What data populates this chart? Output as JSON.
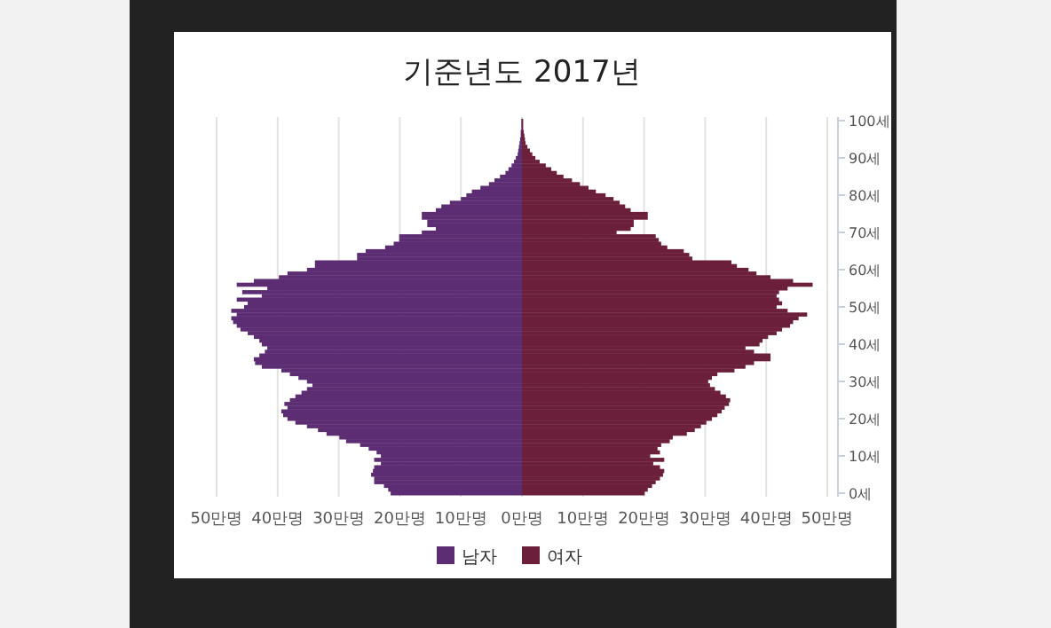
{
  "chart_data": {
    "type": "bar",
    "orientation": "horizontal",
    "title": "기준년도 2017년",
    "categories": [
      "100세",
      null,
      null,
      null,
      null,
      null,
      null,
      null,
      null,
      null,
      "90세",
      null,
      null,
      null,
      null,
      null,
      null,
      null,
      null,
      null,
      "80세",
      null,
      null,
      null,
      null,
      null,
      null,
      null,
      null,
      null,
      "70세",
      null,
      null,
      null,
      null,
      null,
      null,
      null,
      null,
      null,
      "60세",
      null,
      null,
      null,
      null,
      null,
      null,
      null,
      null,
      null,
      "50세",
      null,
      null,
      null,
      null,
      null,
      null,
      null,
      null,
      null,
      "40세",
      null,
      null,
      null,
      null,
      null,
      null,
      null,
      null,
      null,
      "30세",
      null,
      null,
      null,
      null,
      null,
      null,
      null,
      null,
      null,
      "20세",
      null,
      null,
      null,
      null,
      null,
      null,
      null,
      null,
      null,
      "10세",
      null,
      null,
      null,
      null,
      null,
      null,
      null,
      null,
      null,
      "0세"
    ],
    "series": [
      {
        "name": "남자",
        "color": "#5c2d73",
        "values": [
          -0.1,
          -0.1,
          -0.1,
          -0.2,
          -0.2,
          -0.3,
          -0.4,
          -0.5,
          -0.6,
          -0.7,
          -1,
          -1.3,
          -1.7,
          -2.2,
          -2.7,
          -3.6,
          -4.5,
          -5.4,
          -6.8,
          -8.2,
          -9.1,
          -10,
          -11.8,
          -13.2,
          -14.1,
          -16.4,
          -16.4,
          -15.5,
          -15.5,
          -14.1,
          -16.4,
          -20.1,
          -20.1,
          -21,
          -22.4,
          -25.6,
          -27,
          -27,
          -33.9,
          -33.9,
          -35.2,
          -38.4,
          -39.8,
          -43.9,
          -46.7,
          -41.7,
          -45.8,
          -42.6,
          -46.7,
          -44.9,
          -45.5,
          -47.6,
          -46.7,
          -47.6,
          -47.3,
          -46.7,
          -46.1,
          -44.9,
          -43.9,
          -43,
          -42.6,
          -41.7,
          -42.1,
          -43,
          -43.9,
          -43.7,
          -42.6,
          -39.4,
          -38,
          -36.6,
          -35.2,
          -34.3,
          -35.2,
          -36.1,
          -37.1,
          -38,
          -38.9,
          -38.4,
          -39.4,
          -39.1,
          -38.4,
          -37.1,
          -35.2,
          -33.4,
          -32,
          -29.9,
          -28.8,
          -26.5,
          -25.1,
          -23.8,
          -23.1,
          -24.2,
          -23.1,
          -24.2,
          -24.4,
          -24.7,
          -24.2,
          -24.2,
          -22.6,
          -21.9,
          -21.5
        ]
      },
      {
        "name": "여자",
        "color": "#6b1f3a",
        "values": [
          0.2,
          0.2,
          0.2,
          0.3,
          0.4,
          0.5,
          0.6,
          0.9,
          1.3,
          1.7,
          2.2,
          2.9,
          3.9,
          4.8,
          5.7,
          6.8,
          8.2,
          9.5,
          10.9,
          12.1,
          13.7,
          15,
          16,
          16.9,
          17.8,
          20.6,
          20.6,
          18.3,
          18.3,
          17.8,
          15.5,
          21.9,
          22.4,
          22.8,
          23.8,
          26.5,
          27.4,
          27.9,
          34.3,
          35.2,
          37.1,
          38.4,
          40.7,
          44.4,
          47.6,
          43.5,
          42.1,
          41.7,
          42.1,
          42.6,
          41.7,
          43.5,
          46.7,
          45.3,
          44.4,
          43.9,
          42.6,
          41.7,
          40.3,
          39.4,
          38.9,
          36.6,
          38,
          40.7,
          40.7,
          38,
          36.6,
          34.8,
          32,
          31.1,
          30.5,
          30.8,
          31.6,
          32.5,
          33.4,
          34.1,
          33.9,
          33.2,
          32.7,
          32,
          31.1,
          30.2,
          29.3,
          28.3,
          27,
          24.7,
          24.2,
          22.8,
          22.2,
          22.6,
          21,
          23.3,
          21.5,
          22.6,
          23.3,
          23.1,
          22.6,
          21.9,
          21.3,
          20.6,
          20.1
        ]
      }
    ],
    "xlim": [
      -50,
      50
    ],
    "xticks": [
      {
        "value": -50,
        "label": "50만명"
      },
      {
        "value": -40,
        "label": "40만명"
      },
      {
        "value": -30,
        "label": "30만명"
      },
      {
        "value": -20,
        "label": "20만명"
      },
      {
        "value": -10,
        "label": "10만명"
      },
      {
        "value": 0,
        "label": "0만명"
      },
      {
        "value": 10,
        "label": "10만명"
      },
      {
        "value": 20,
        "label": "20만명"
      },
      {
        "value": 30,
        "label": "30만명"
      },
      {
        "value": 40,
        "label": "40만명"
      },
      {
        "value": 50,
        "label": "50만명"
      }
    ],
    "grid": "x",
    "legend": "bottom",
    "stacked": true
  }
}
